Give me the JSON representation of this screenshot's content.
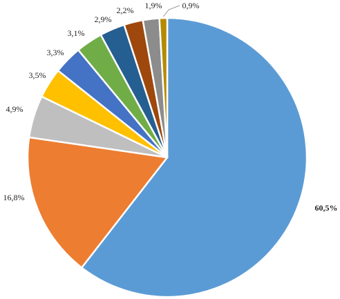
{
  "chart_data": {
    "type": "pie",
    "title": "",
    "start": "12 o'clock",
    "direction": "clockwise",
    "legend": "none",
    "slices": [
      {
        "value": 60.5,
        "label": "60,5%",
        "color": "#5B9BD5"
      },
      {
        "value": 16.8,
        "label": "16,8%",
        "color": "#ED7D31"
      },
      {
        "value": 4.9,
        "label": "4,9%",
        "color": "#BFBFBF"
      },
      {
        "value": 3.5,
        "label": "3,5%",
        "color": "#FFC000"
      },
      {
        "value": 3.3,
        "label": "3,3%",
        "color": "#4472C4"
      },
      {
        "value": 3.1,
        "label": "3,1%",
        "color": "#70AD47"
      },
      {
        "value": 2.9,
        "label": "2,9%",
        "color": "#255E91"
      },
      {
        "value": 2.2,
        "label": "2,2%",
        "color": "#9E480E"
      },
      {
        "value": 1.9,
        "label": "1,9%",
        "color": "#8C8C8C"
      },
      {
        "value": 0.9,
        "label": "0,9%",
        "color": "#B48B00"
      }
    ]
  }
}
